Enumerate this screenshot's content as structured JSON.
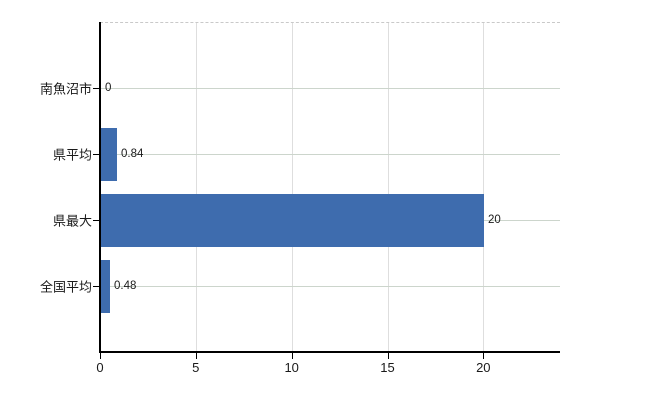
{
  "chart_data": {
    "type": "bar",
    "orientation": "horizontal",
    "title": "",
    "xlabel": "",
    "ylabel": "",
    "categories": [
      "南魚沼市",
      "県平均",
      "県最大",
      "全国平均"
    ],
    "values": [
      0,
      0.84,
      20,
      0.48
    ],
    "value_labels": [
      "0",
      "0.84",
      "20",
      "0.48"
    ],
    "x_ticks": [
      0,
      5,
      10,
      15,
      20
    ],
    "x_tick_labels": [
      "0",
      "5",
      "10",
      "15",
      "20"
    ],
    "xlim": [
      0,
      24
    ],
    "grid": true,
    "legend": false
  },
  "colors": {
    "background": "#ffffff",
    "bar": "#3e6cae",
    "axis": "#000000",
    "grid_horizontal": "#ccd5cc",
    "grid_vertical": "#dedede",
    "top_border": "#c9c9c9",
    "text": "#1a1a1a"
  }
}
